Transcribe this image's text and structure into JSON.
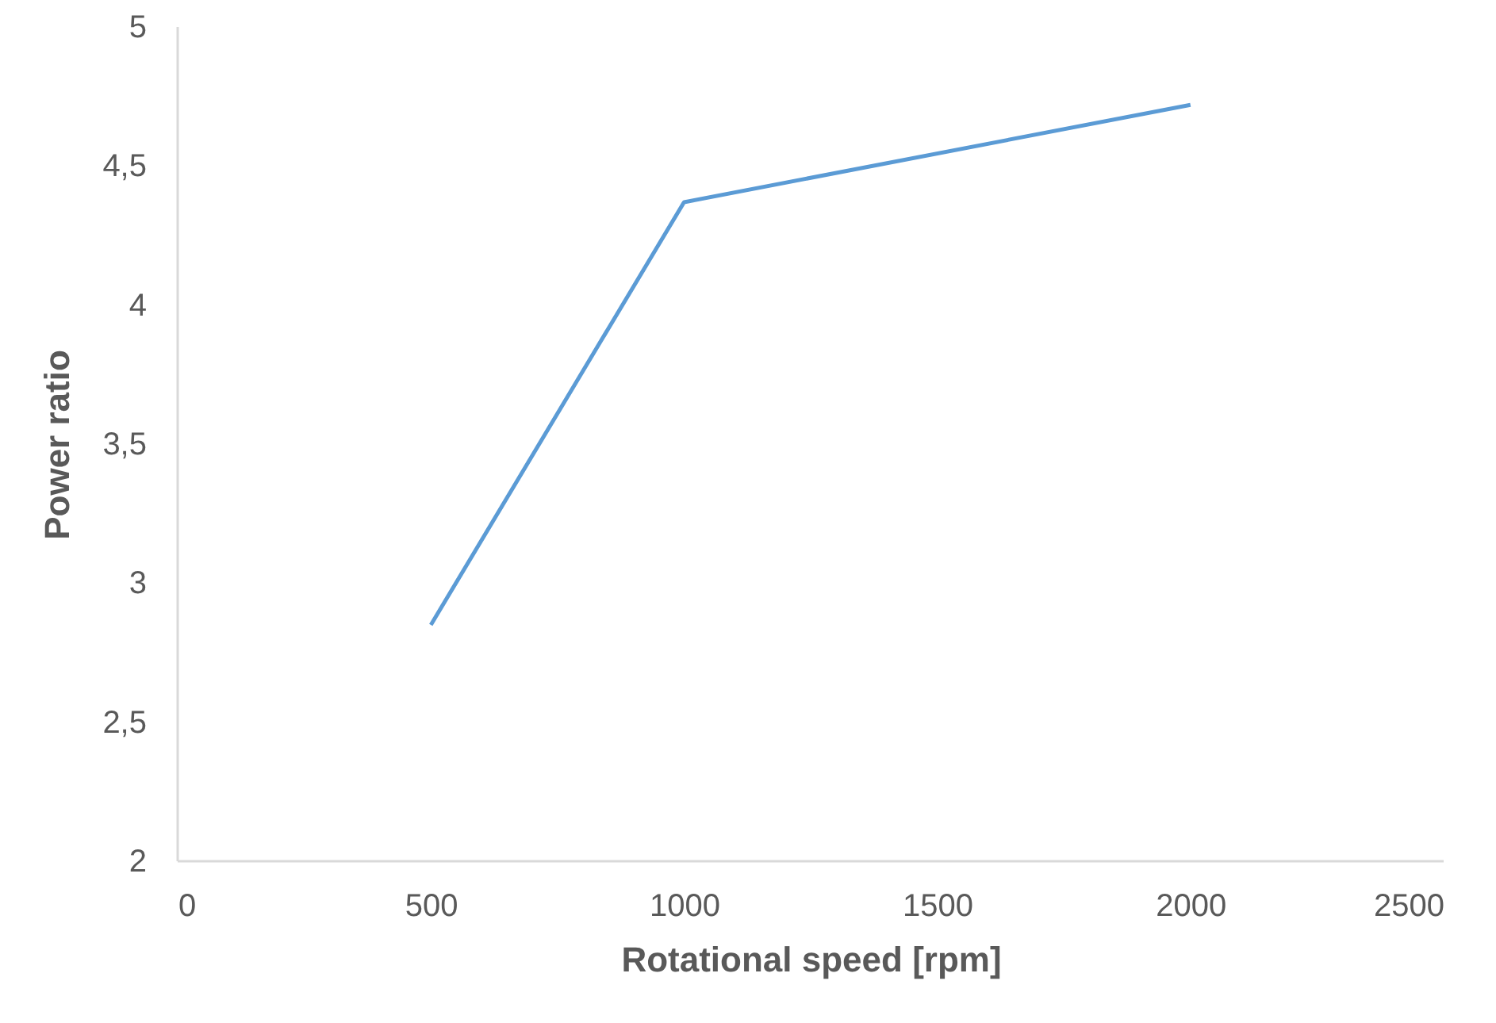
{
  "chart_data": {
    "type": "line",
    "xlabel": "Rotational speed [rpm]",
    "ylabel": "Power ratio",
    "x": [
      500,
      1000,
      2000
    ],
    "series": [
      {
        "color": "#5b9bd5",
        "values": [
          2.85,
          4.37,
          4.72
        ]
      }
    ],
    "xlim": [
      0,
      2500
    ],
    "xticks": [
      0,
      500,
      1000,
      1500,
      2000,
      2500
    ],
    "ylim": [
      2,
      5
    ],
    "yticks": [
      2,
      {
        "value": 2.5,
        "label": "2,5"
      },
      3,
      {
        "value": 3.5,
        "label": "3,5"
      },
      4,
      {
        "value": 4.5,
        "label": "4,5"
      },
      5
    ],
    "grid": false,
    "marker": "none",
    "line_style": "solid"
  }
}
